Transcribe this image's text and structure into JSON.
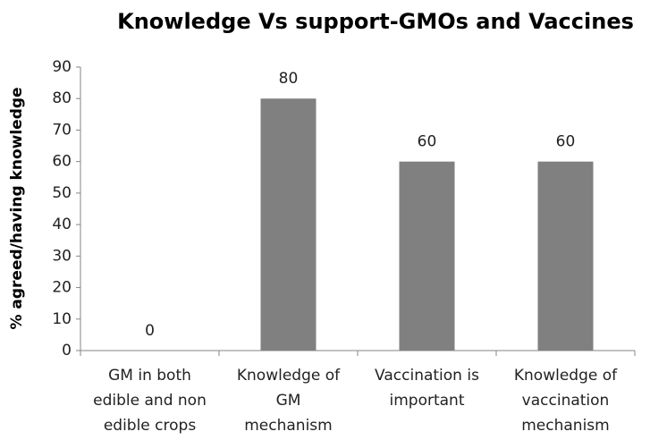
{
  "chart_data": {
    "type": "bar",
    "title": "Knowledge Vs support-GMOs and Vaccines",
    "y_label": "% agreed/having knowledge",
    "categories": [
      [
        "GM in both",
        "edible and non",
        "edible crops"
      ],
      [
        "Knowledge of",
        "GM",
        "mechanism"
      ],
      [
        "Vaccination is",
        "important"
      ],
      [
        "Knowledge of",
        "vaccination",
        "mechanism"
      ]
    ],
    "values": [
      0,
      80,
      60,
      60
    ],
    "color": "#808080",
    "ylim": [
      0,
      90
    ],
    "yticks": [
      0,
      10,
      20,
      30,
      40,
      50,
      60,
      70,
      80,
      90
    ],
    "grid": false
  }
}
